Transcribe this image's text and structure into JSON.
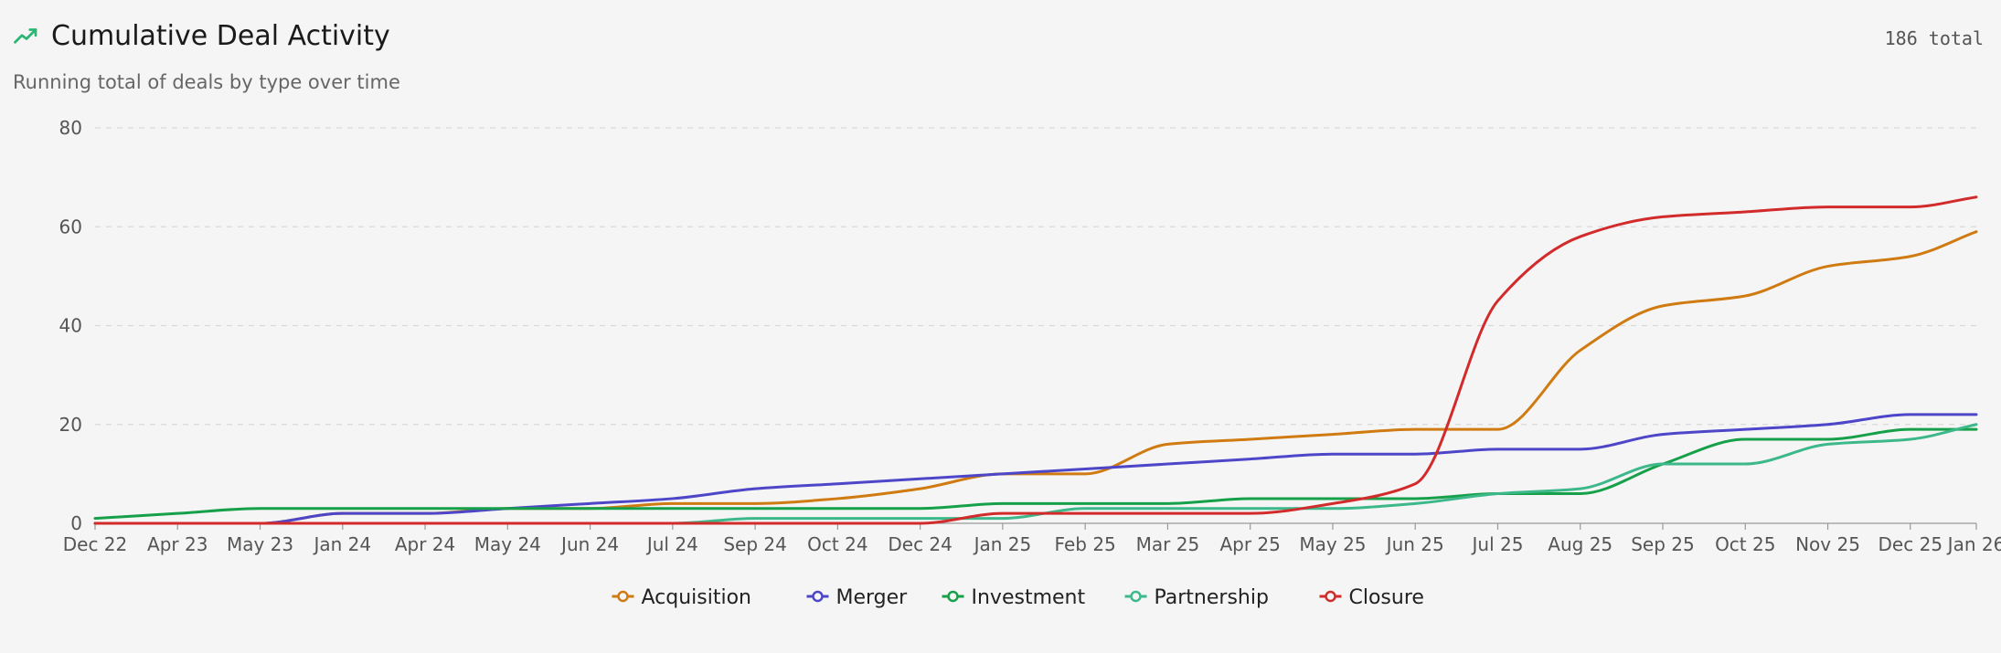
{
  "header": {
    "title": "Cumulative Deal Activity",
    "subtitle": "Running total of deals by type over time",
    "total": "186 total"
  },
  "colors": {
    "accent": "#2bb673",
    "grid": "#d9d9d9",
    "axis": "#999999"
  },
  "chart_data": {
    "type": "line",
    "title": "Cumulative Deal Activity",
    "categories": [
      "Dec 22",
      "Apr 23",
      "May 23",
      "Jan 24",
      "Apr 24",
      "May 24",
      "Jun 24",
      "Jul 24",
      "Sep 24",
      "Oct 24",
      "Dec 24",
      "Jan 25",
      "Feb 25",
      "Mar 25",
      "Apr 25",
      "May 25",
      "Jun 25",
      "Jul 25",
      "Aug 25",
      "Sep 25",
      "Oct 25",
      "Nov 25",
      "Dec 25",
      "Jan 26"
    ],
    "x_positions": [
      0,
      1,
      2,
      3,
      4,
      5,
      6,
      7,
      8,
      9,
      10,
      11,
      12,
      13,
      14,
      15,
      16,
      17,
      18,
      19,
      20,
      21,
      22,
      22.8
    ],
    "ylim": [
      0,
      80
    ],
    "yticks": [
      0,
      20,
      40,
      60,
      80
    ],
    "grid": true,
    "legend_position": "bottom",
    "series": [
      {
        "name": "Acquisition",
        "color": "#d07a12",
        "values": [
          0,
          0,
          0,
          2,
          2,
          3,
          3,
          4,
          4,
          5,
          7,
          10,
          10,
          16,
          17,
          18,
          19,
          19,
          35,
          44,
          46,
          52,
          54,
          59
        ]
      },
      {
        "name": "Merger",
        "color": "#4e46c8",
        "values": [
          0,
          0,
          0,
          2,
          2,
          3,
          4,
          5,
          7,
          8,
          9,
          10,
          11,
          12,
          13,
          14,
          14,
          15,
          15,
          18,
          19,
          20,
          22,
          22
        ]
      },
      {
        "name": "Investment",
        "color": "#17a04a",
        "values": [
          1,
          2,
          3,
          3,
          3,
          3,
          3,
          3,
          3,
          3,
          3,
          4,
          4,
          4,
          5,
          5,
          5,
          6,
          6,
          12,
          17,
          17,
          19,
          19
        ]
      },
      {
        "name": "Partnership",
        "color": "#3db88a",
        "values": [
          0,
          0,
          0,
          0,
          0,
          0,
          0,
          0,
          1,
          1,
          1,
          1,
          3,
          3,
          3,
          3,
          4,
          6,
          7,
          12,
          12,
          16,
          17,
          20
        ]
      },
      {
        "name": "Closure",
        "color": "#d22b2b",
        "values": [
          0,
          0,
          0,
          0,
          0,
          0,
          0,
          0,
          0,
          0,
          0,
          2,
          2,
          2,
          2,
          4,
          8,
          45,
          58,
          62,
          63,
          64,
          64,
          66
        ]
      }
    ]
  }
}
